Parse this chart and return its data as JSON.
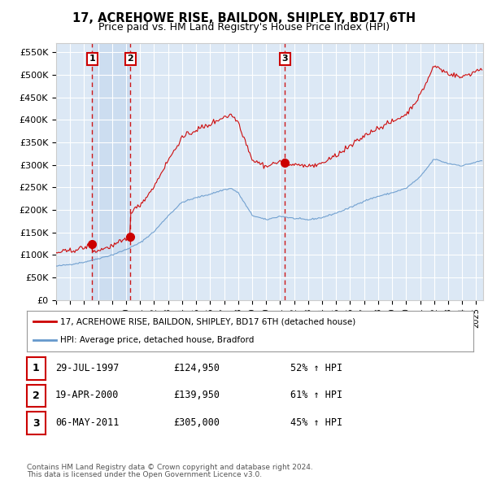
{
  "title": "17, ACREHOWE RISE, BAILDON, SHIPLEY, BD17 6TH",
  "subtitle": "Price paid vs. HM Land Registry's House Price Index (HPI)",
  "ylabel_ticks": [
    "£0",
    "£50K",
    "£100K",
    "£150K",
    "£200K",
    "£250K",
    "£300K",
    "£350K",
    "£400K",
    "£450K",
    "£500K",
    "£550K"
  ],
  "ytick_values": [
    0,
    50000,
    100000,
    150000,
    200000,
    250000,
    300000,
    350000,
    400000,
    450000,
    500000,
    550000
  ],
  "sale_year_floats": [
    1997.581,
    2000.302,
    2011.347
  ],
  "sale_prices": [
    124950,
    139950,
    305000
  ],
  "sale_labels": [
    "1",
    "2",
    "3"
  ],
  "legend_line1": "17, ACREHOWE RISE, BAILDON, SHIPLEY, BD17 6TH (detached house)",
  "legend_line2": "HPI: Average price, detached house, Bradford",
  "table_data": [
    [
      "1",
      "29-JUL-1997",
      "£124,950",
      "52% ↑ HPI"
    ],
    [
      "2",
      "19-APR-2000",
      "£139,950",
      "61% ↑ HPI"
    ],
    [
      "3",
      "06-MAY-2011",
      "£305,000",
      "45% ↑ HPI"
    ]
  ],
  "footer_line1": "Contains HM Land Registry data © Crown copyright and database right 2024.",
  "footer_line2": "This data is licensed under the Open Government Licence v3.0.",
  "red_color": "#cc0000",
  "blue_color": "#6699cc",
  "background_color": "#dce8f5",
  "shaded_color": "#ccddf0",
  "grid_color": "#ffffff",
  "xlim_start": 1995.0,
  "xlim_end": 2025.5,
  "ylim_min": 0,
  "ylim_max": 570000
}
